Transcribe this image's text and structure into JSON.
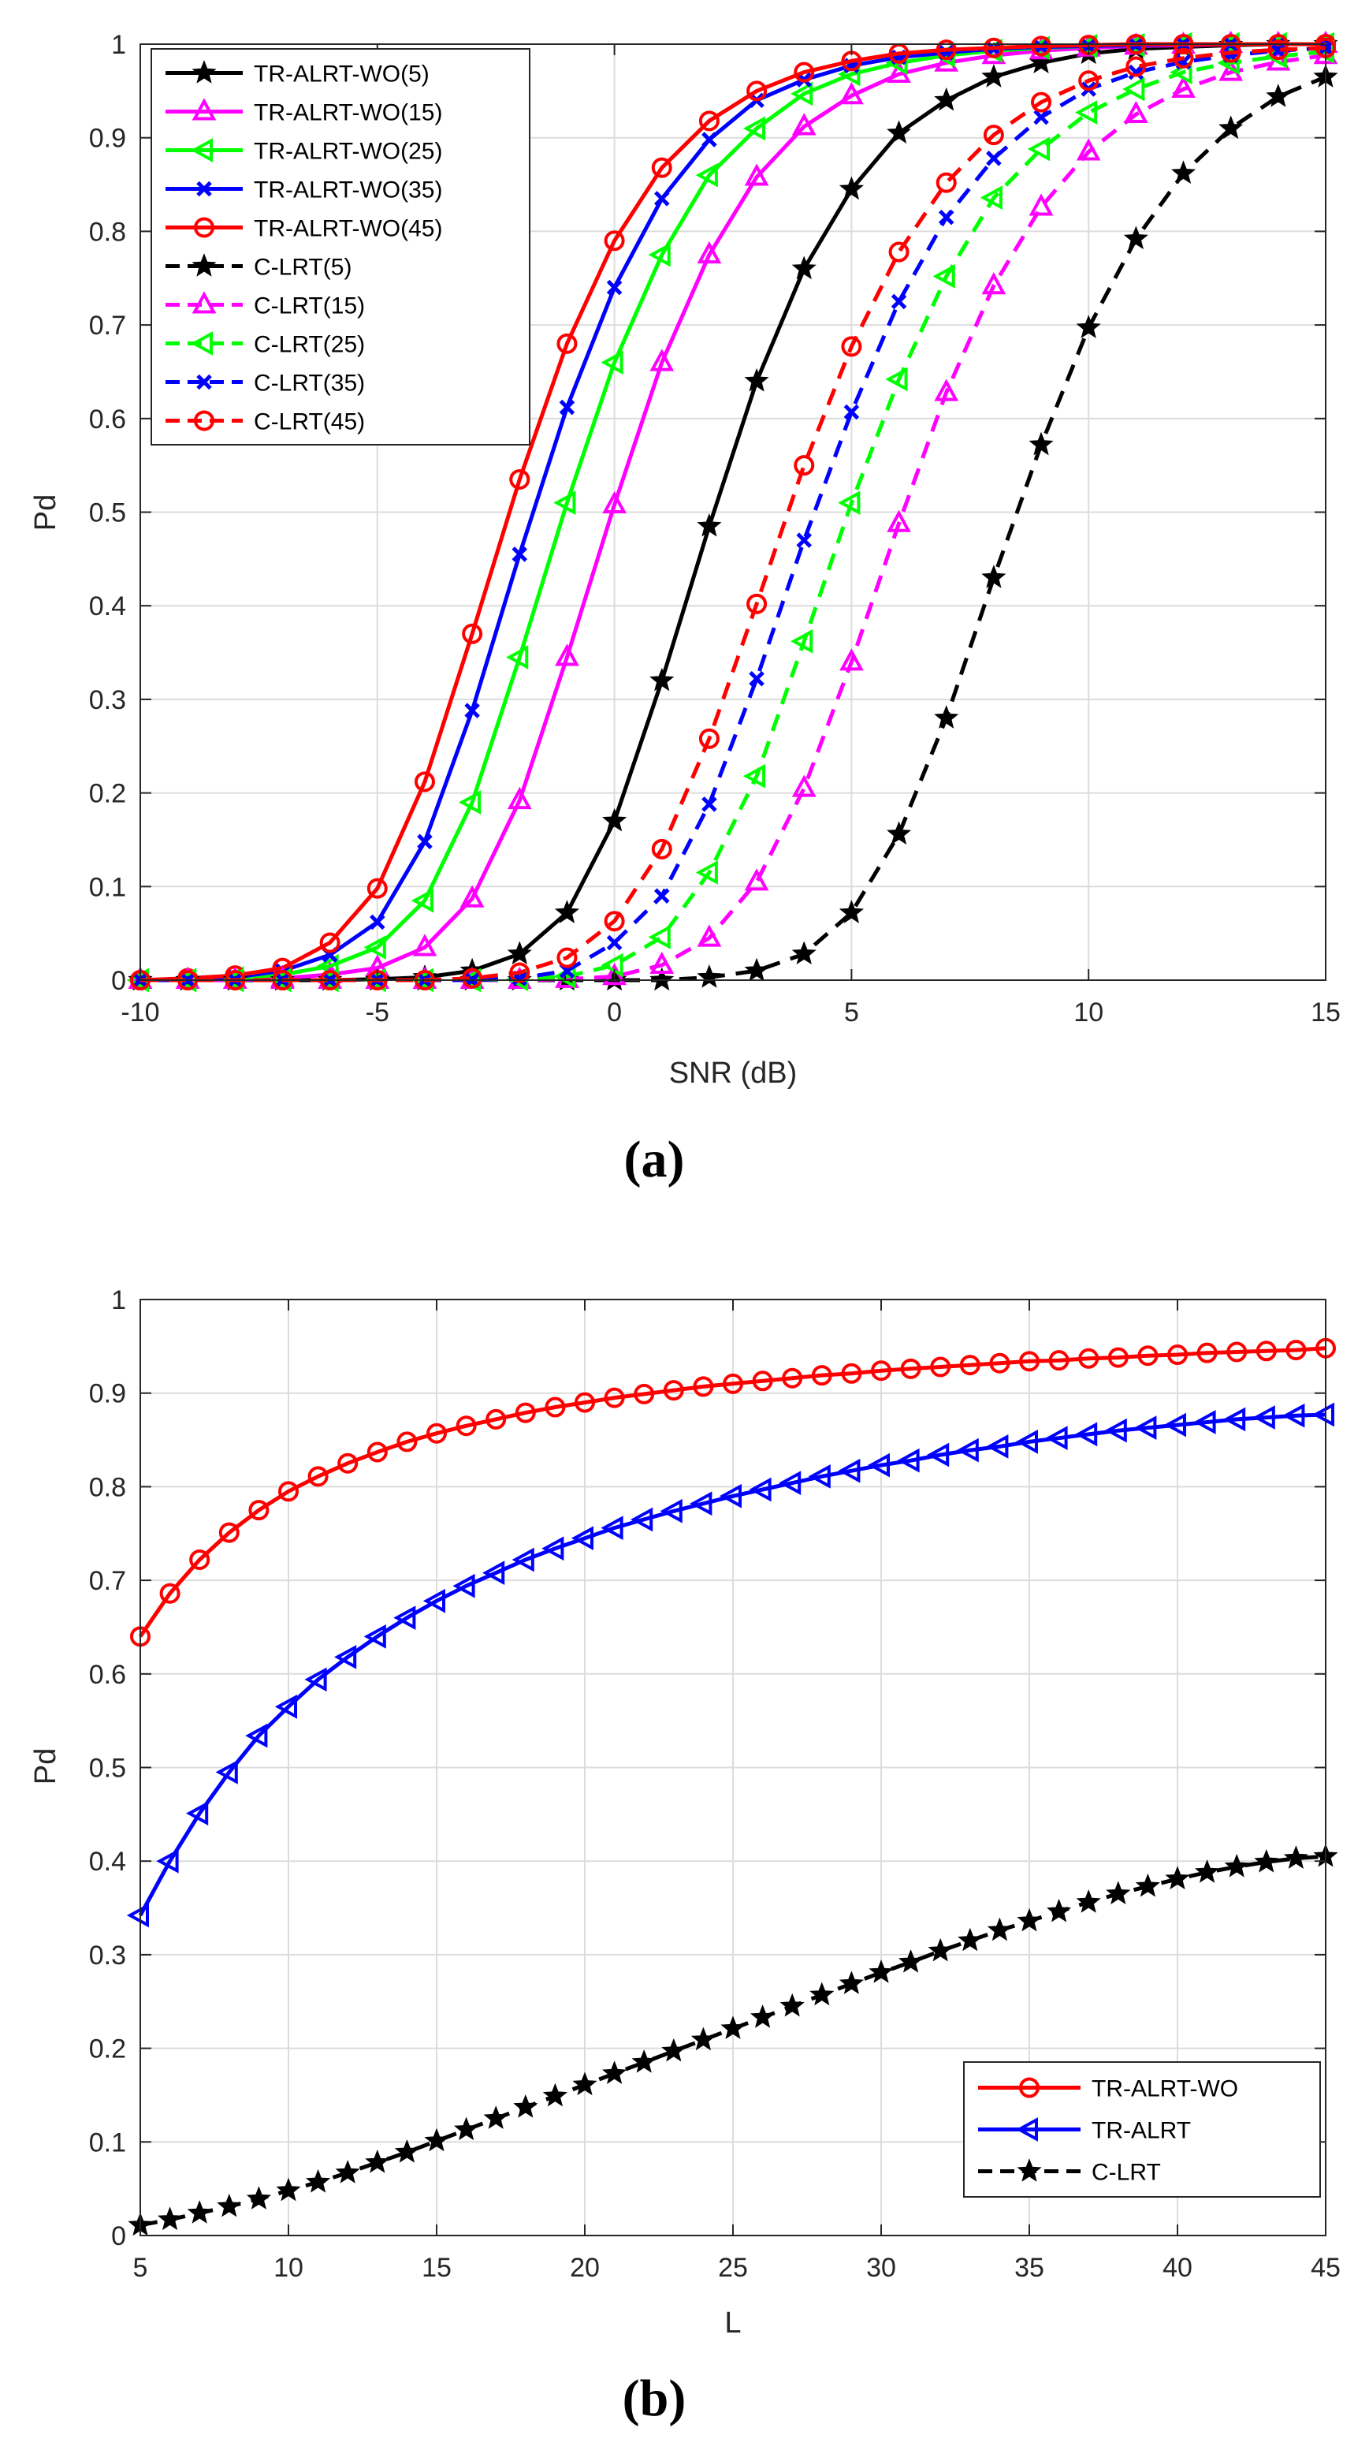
{
  "chart_data": [
    {
      "id": "a",
      "type": "line",
      "panel_label": "(a)",
      "xlabel": "SNR (dB)",
      "ylabel": "Pd",
      "xlim": [
        -10,
        15
      ],
      "ylim": [
        0,
        1
      ],
      "xticks": [
        -10,
        -5,
        0,
        5,
        10,
        15
      ],
      "yticks": [
        0,
        0.1,
        0.2,
        0.3,
        0.4,
        0.5,
        0.6,
        0.7,
        0.8,
        0.9,
        1
      ],
      "grid": true,
      "legend_position": "top-left",
      "x": [
        -10,
        -9,
        -8,
        -7,
        -6,
        -5,
        -4,
        -3,
        -2,
        -1,
        0,
        1,
        2,
        3,
        4,
        5,
        6,
        7,
        8,
        9,
        10,
        11,
        12,
        13,
        14,
        15
      ],
      "series": [
        {
          "name": "TR-ALRT-WO(5)",
          "color": "#000000",
          "dash": "solid",
          "marker": "star",
          "values": [
            0,
            0,
            0,
            0,
            0,
            0.001,
            0.003,
            0.01,
            0.028,
            0.072,
            0.17,
            0.32,
            0.485,
            0.64,
            0.76,
            0.845,
            0.905,
            0.94,
            0.965,
            0.98,
            0.99,
            0.995,
            0.997,
            0.999,
            1,
            1
          ]
        },
        {
          "name": "TR-ALRT-WO(15)",
          "color": "#ff00ff",
          "dash": "solid",
          "marker": "triangle-up",
          "values": [
            0,
            0,
            0,
            0.002,
            0.006,
            0.013,
            0.035,
            0.087,
            0.192,
            0.345,
            0.508,
            0.66,
            0.775,
            0.858,
            0.912,
            0.945,
            0.968,
            0.98,
            0.988,
            0.993,
            0.996,
            0.998,
            0.999,
            1,
            1,
            1
          ]
        },
        {
          "name": "TR-ALRT-WO(25)",
          "color": "#00ff00",
          "dash": "solid",
          "marker": "triangle-left",
          "values": [
            0,
            0,
            0.002,
            0.006,
            0.015,
            0.035,
            0.085,
            0.19,
            0.345,
            0.51,
            0.66,
            0.775,
            0.86,
            0.91,
            0.947,
            0.968,
            0.98,
            0.988,
            0.993,
            0.996,
            0.998,
            0.999,
            1,
            1,
            1,
            1
          ]
        },
        {
          "name": "TR-ALRT-WO(35)",
          "color": "#0000ff",
          "dash": "solid",
          "marker": "x",
          "values": [
            0,
            0,
            0.003,
            0.01,
            0.027,
            0.062,
            0.148,
            0.288,
            0.455,
            0.612,
            0.74,
            0.835,
            0.898,
            0.94,
            0.962,
            0.977,
            0.986,
            0.991,
            0.995,
            0.997,
            0.998,
            0.999,
            1,
            1,
            1,
            1
          ]
        },
        {
          "name": "TR-ALRT-WO(45)",
          "color": "#ff0000",
          "dash": "solid",
          "marker": "circle",
          "values": [
            0,
            0.002,
            0.005,
            0.013,
            0.04,
            0.098,
            0.212,
            0.37,
            0.535,
            0.68,
            0.79,
            0.868,
            0.918,
            0.95,
            0.97,
            0.982,
            0.99,
            0.994,
            0.996,
            0.998,
            0.999,
            1,
            1,
            1,
            1,
            1
          ]
        },
        {
          "name": "C-LRT(5)",
          "color": "#000000",
          "dash": "dashed",
          "marker": "star",
          "values": [
            0,
            0,
            0,
            0,
            0,
            0,
            0,
            0,
            0,
            0,
            0,
            0,
            0.003,
            0.01,
            0.028,
            0.072,
            0.156,
            0.28,
            0.43,
            0.572,
            0.697,
            0.792,
            0.862,
            0.91,
            0.944,
            0.965
          ]
        },
        {
          "name": "C-LRT(15)",
          "color": "#ff00ff",
          "dash": "dashed",
          "marker": "triangle-up",
          "values": [
            0,
            0,
            0,
            0,
            0,
            0,
            0,
            0,
            0,
            0.001,
            0.004,
            0.016,
            0.045,
            0.105,
            0.205,
            0.34,
            0.488,
            0.628,
            0.742,
            0.826,
            0.885,
            0.925,
            0.952,
            0.97,
            0.981,
            0.988
          ]
        },
        {
          "name": "C-LRT(25)",
          "color": "#00ff00",
          "dash": "dashed",
          "marker": "triangle-left",
          "values": [
            0,
            0,
            0,
            0,
            0,
            0,
            0,
            0,
            0.001,
            0.004,
            0.016,
            0.046,
            0.115,
            0.218,
            0.362,
            0.51,
            0.642,
            0.752,
            0.836,
            0.888,
            0.927,
            0.952,
            0.97,
            0.98,
            0.987,
            0.992
          ]
        },
        {
          "name": "C-LRT(35)",
          "color": "#0000ff",
          "dash": "dashed",
          "marker": "x",
          "values": [
            0,
            0,
            0,
            0,
            0,
            0,
            0,
            0,
            0.002,
            0.01,
            0.04,
            0.09,
            0.188,
            0.322,
            0.47,
            0.607,
            0.725,
            0.815,
            0.878,
            0.922,
            0.952,
            0.97,
            0.981,
            0.988,
            0.993,
            0.996
          ]
        },
        {
          "name": "C-LRT(45)",
          "color": "#ff0000",
          "dash": "dashed",
          "marker": "circle",
          "values": [
            0,
            0,
            0,
            0,
            0,
            0,
            0,
            0.002,
            0.008,
            0.024,
            0.063,
            0.14,
            0.258,
            0.402,
            0.55,
            0.677,
            0.778,
            0.852,
            0.903,
            0.938,
            0.961,
            0.976,
            0.985,
            0.991,
            0.994,
            0.996
          ]
        }
      ]
    },
    {
      "id": "b",
      "type": "line",
      "panel_label": "(b)",
      "xlabel": "L",
      "ylabel": "Pd",
      "xlim": [
        5,
        45
      ],
      "ylim": [
        0,
        1
      ],
      "xticks": [
        5,
        10,
        15,
        20,
        25,
        30,
        35,
        40,
        45
      ],
      "yticks": [
        0,
        0.1,
        0.2,
        0.3,
        0.4,
        0.5,
        0.6,
        0.7,
        0.8,
        0.9,
        1
      ],
      "grid": true,
      "legend_position": "bottom-right",
      "x": [
        5,
        6,
        7,
        8,
        9,
        10,
        11,
        12,
        13,
        14,
        15,
        16,
        17,
        18,
        19,
        20,
        21,
        22,
        23,
        24,
        25,
        26,
        27,
        28,
        29,
        30,
        31,
        32,
        33,
        34,
        35,
        36,
        37,
        38,
        39,
        40,
        41,
        42,
        43,
        44,
        45
      ],
      "series": [
        {
          "name": "TR-ALRT-WO",
          "color": "#ff0000",
          "dash": "solid",
          "marker": "circle",
          "values": [
            0.64,
            0.686,
            0.722,
            0.751,
            0.775,
            0.795,
            0.811,
            0.825,
            0.837,
            0.848,
            0.857,
            0.865,
            0.872,
            0.879,
            0.885,
            0.89,
            0.895,
            0.899,
            0.903,
            0.907,
            0.91,
            0.913,
            0.916,
            0.919,
            0.921,
            0.924,
            0.926,
            0.928,
            0.93,
            0.932,
            0.934,
            0.935,
            0.937,
            0.938,
            0.94,
            0.941,
            0.943,
            0.944,
            0.945,
            0.946,
            0.948
          ]
        },
        {
          "name": "TR-ALRT",
          "color": "#0000ff",
          "dash": "solid",
          "marker": "triangle-left",
          "values": [
            0.342,
            0.4,
            0.451,
            0.495,
            0.534,
            0.565,
            0.594,
            0.618,
            0.64,
            0.66,
            0.678,
            0.694,
            0.708,
            0.722,
            0.734,
            0.745,
            0.756,
            0.765,
            0.774,
            0.782,
            0.79,
            0.797,
            0.804,
            0.811,
            0.817,
            0.823,
            0.828,
            0.834,
            0.839,
            0.843,
            0.848,
            0.852,
            0.856,
            0.86,
            0.863,
            0.866,
            0.869,
            0.872,
            0.874,
            0.876,
            0.877
          ]
        },
        {
          "name": "C-LRT",
          "color": "#000000",
          "dash": "dashed",
          "marker": "star",
          "values": [
            0.011,
            0.017,
            0.024,
            0.031,
            0.039,
            0.048,
            0.057,
            0.067,
            0.078,
            0.089,
            0.101,
            0.113,
            0.125,
            0.137,
            0.149,
            0.161,
            0.173,
            0.185,
            0.197,
            0.209,
            0.221,
            0.233,
            0.245,
            0.257,
            0.269,
            0.281,
            0.292,
            0.304,
            0.315,
            0.326,
            0.336,
            0.346,
            0.356,
            0.365,
            0.373,
            0.381,
            0.388,
            0.394,
            0.399,
            0.403,
            0.405
          ]
        }
      ]
    }
  ]
}
